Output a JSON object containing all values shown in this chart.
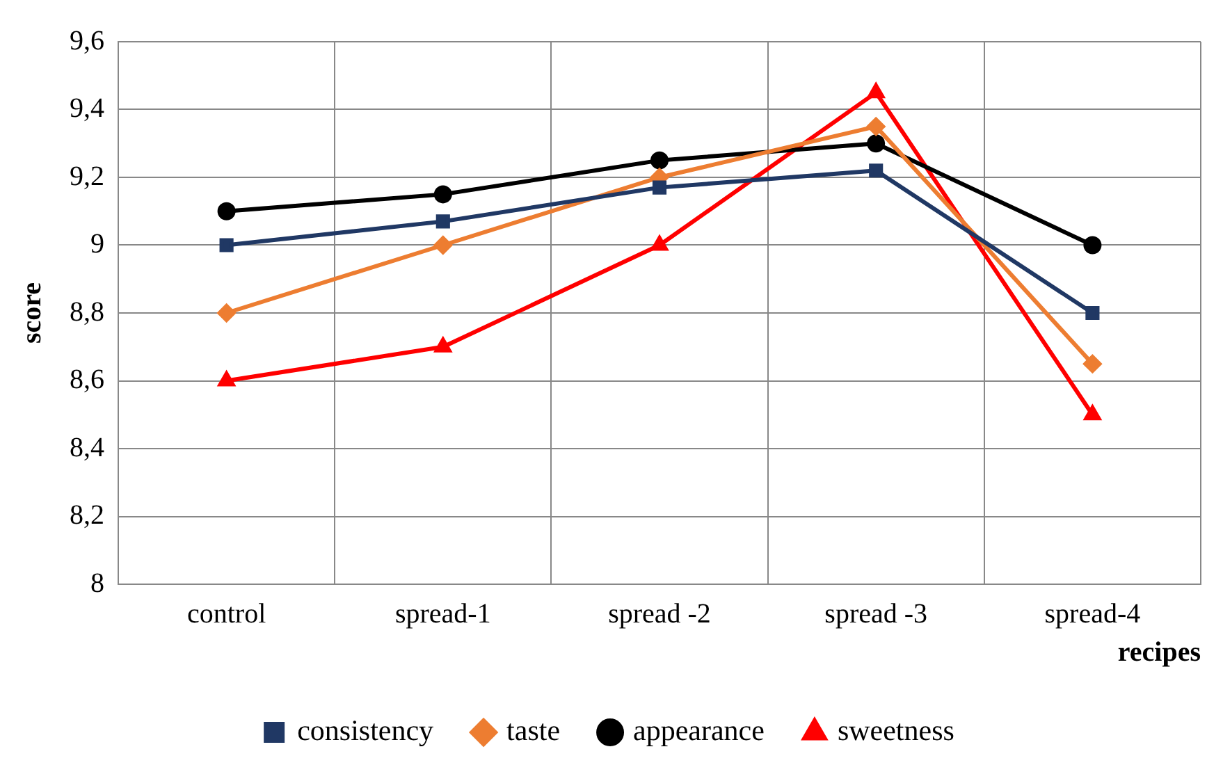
{
  "chart_data": {
    "type": "line",
    "xlabel": "recipes",
    "ylabel": "score",
    "categories": [
      "control",
      "spread-1",
      "spread -2",
      "spread -3",
      "spread-4"
    ],
    "series": [
      {
        "name": "consistency",
        "color": "#203864",
        "marker": "square",
        "values": [
          9.0,
          9.07,
          9.17,
          9.22,
          8.8
        ]
      },
      {
        "name": "taste",
        "color": "#ed7d31",
        "marker": "diamond",
        "values": [
          8.8,
          9.0,
          9.2,
          9.35,
          8.65
        ]
      },
      {
        "name": "appearance",
        "color": "#000000",
        "marker": "circle",
        "values": [
          9.1,
          9.15,
          9.25,
          9.3,
          9.0
        ]
      },
      {
        "name": "sweetness",
        "color": "#ff0000",
        "marker": "triangle",
        "values": [
          8.6,
          8.7,
          9.0,
          9.45,
          8.5
        ]
      }
    ],
    "ylim": [
      8,
      9.6
    ],
    "yticks": [
      8,
      {
        "value": 8.2,
        "label": "8,2"
      },
      {
        "value": 8.4,
        "label": "8,4"
      },
      {
        "value": 8.6,
        "label": "8,6"
      },
      {
        "value": 8.8,
        "label": "8,8"
      },
      9,
      {
        "value": 9.2,
        "label": "9,2"
      },
      {
        "value": 9.4,
        "label": "9,4"
      },
      {
        "value": 9.6,
        "label": "9,6"
      }
    ],
    "grid": true,
    "legend": "bottom",
    "line_style": "solid"
  }
}
